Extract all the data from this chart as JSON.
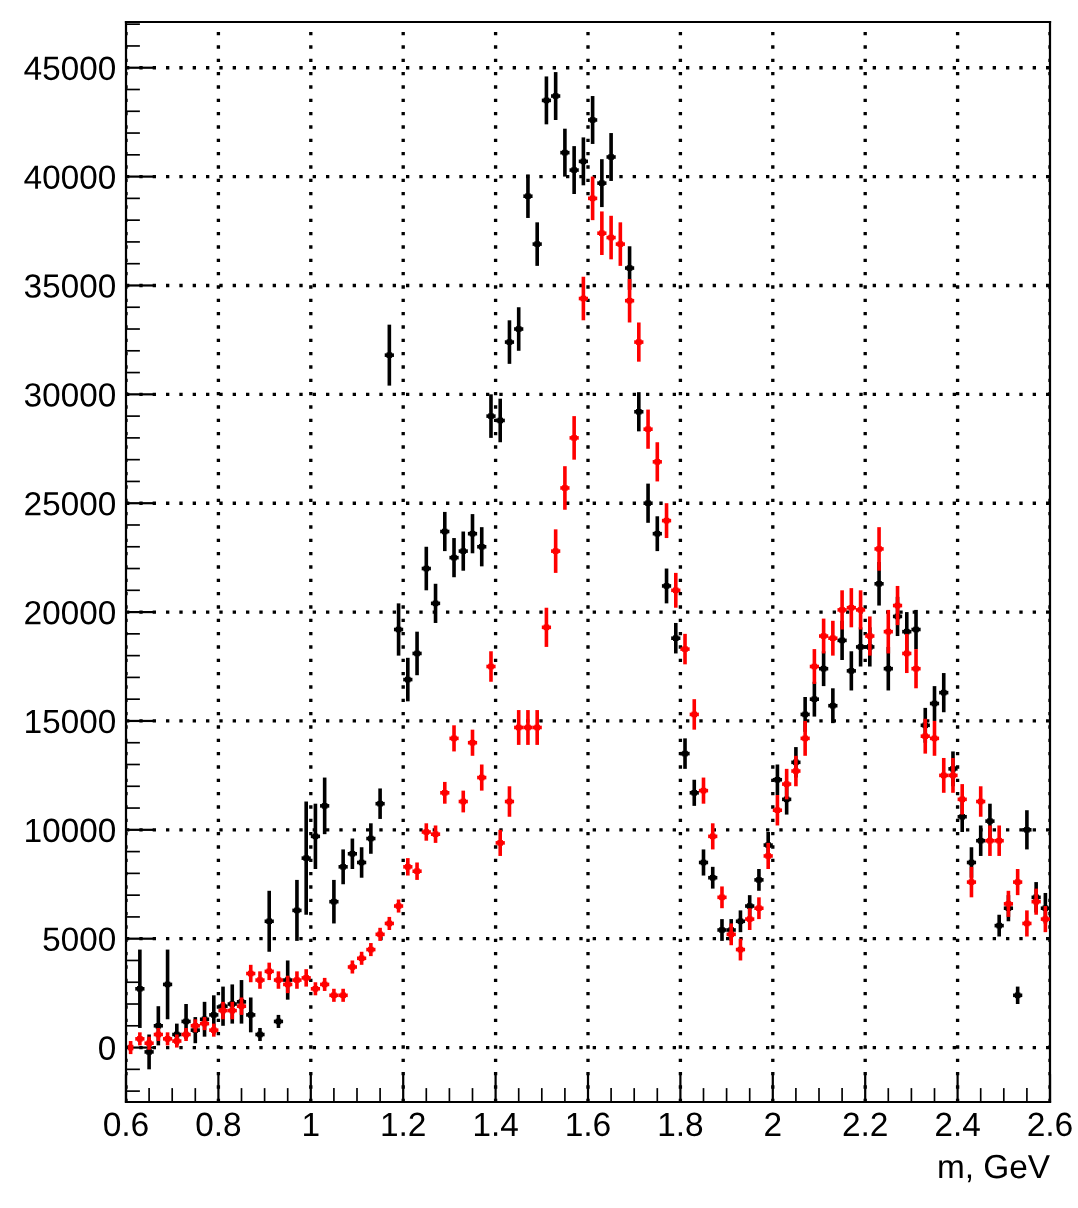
{
  "chart_data": {
    "type": "scatter",
    "xlabel": "m, GeV",
    "x": [
      0.61,
      0.63,
      0.65,
      0.67,
      0.69,
      0.71,
      0.73,
      0.75,
      0.77,
      0.79,
      0.81,
      0.83,
      0.85,
      0.87,
      0.89,
      0.91,
      0.93,
      0.95,
      0.97,
      0.99,
      1.01,
      1.03,
      1.05,
      1.07,
      1.09,
      1.11,
      1.13,
      1.15,
      1.17,
      1.19,
      1.21,
      1.23,
      1.25,
      1.27,
      1.29,
      1.31,
      1.33,
      1.35,
      1.37,
      1.39,
      1.41,
      1.43,
      1.45,
      1.47,
      1.49,
      1.51,
      1.53,
      1.55,
      1.57,
      1.59,
      1.61,
      1.63,
      1.65,
      1.67,
      1.69,
      1.71,
      1.73,
      1.75,
      1.77,
      1.79,
      1.81,
      1.83,
      1.85,
      1.87,
      1.89,
      1.91,
      1.93,
      1.95,
      1.97,
      1.99,
      2.01,
      2.03,
      2.05,
      2.07,
      2.09,
      2.11,
      2.13,
      2.15,
      2.17,
      2.19,
      2.21,
      2.23,
      2.25,
      2.27,
      2.29,
      2.31,
      2.33,
      2.35,
      2.37,
      2.39,
      2.41,
      2.43,
      2.45,
      2.47,
      2.49,
      2.51,
      2.53,
      2.55,
      2.57,
      2.59
    ],
    "series": [
      {
        "color": "#000000",
        "values": [
          null,
          2700,
          -200,
          1000,
          2900,
          600,
          1200,
          800,
          1300,
          1500,
          1900,
          2000,
          2100,
          1500,
          600,
          5800,
          1200,
          3100,
          6300,
          8700,
          9700,
          11100,
          6700,
          8300,
          8900,
          8500,
          9600,
          11200,
          31800,
          19200,
          16900,
          18100,
          22000,
          20400,
          23700,
          22500,
          22800,
          23600,
          23000,
          29000,
          28800,
          32400,
          33000,
          39100,
          36900,
          43500,
          43700,
          41100,
          40300,
          40700,
          42600,
          39700,
          40900,
          null,
          35800,
          29200,
          25000,
          23600,
          21200,
          18800,
          13500,
          11700,
          8500,
          7800,
          5400,
          5400,
          5800,
          6500,
          7700,
          9300,
          12300,
          11400,
          13100,
          15300,
          16000,
          17400,
          15700,
          18700,
          17300,
          18400,
          18400,
          21300,
          17400,
          19800,
          19100,
          19200,
          14800,
          15800,
          16300,
          12800,
          10600,
          8500,
          9500,
          10400,
          5600,
          6400,
          2400,
          10000,
          6900,
          6400
        ],
        "errors": [
          null,
          1800,
          800,
          900,
          1600,
          500,
          800,
          600,
          800,
          900,
          900,
          900,
          1000,
          800,
          300,
          1400,
          300,
          900,
          1400,
          2600,
          1500,
          1300,
          1000,
          800,
          700,
          700,
          700,
          700,
          1400,
          1200,
          1000,
          1000,
          1000,
          900,
          900,
          900,
          900,
          900,
          900,
          1000,
          1000,
          1000,
          1000,
          1000,
          1000,
          1100,
          1100,
          1100,
          1100,
          1100,
          1100,
          1100,
          1100,
          null,
          1000,
          900,
          900,
          800,
          800,
          700,
          700,
          600,
          600,
          500,
          500,
          500,
          500,
          500,
          500,
          600,
          700,
          700,
          700,
          800,
          800,
          800,
          800,
          900,
          900,
          900,
          900,
          1000,
          1000,
          900,
          900,
          900,
          800,
          800,
          900,
          800,
          700,
          700,
          700,
          800,
          500,
          600,
          400,
          900,
          700,
          700
        ],
        "xerrors": [
          null,
          0.01,
          0.01,
          0.01,
          0.01,
          0.01,
          0.01,
          0.01,
          0.01,
          0.01,
          0.01,
          0.01,
          0.01,
          0.01,
          0.01,
          0.01,
          0.01,
          0.01,
          0.01,
          0.01,
          0.01,
          0.01,
          0.01,
          0.01,
          0.01,
          0.01,
          0.01,
          0.01,
          0.01,
          0.01,
          0.01,
          0.01,
          0.01,
          0.01,
          0.01,
          0.01,
          0.01,
          0.01,
          0.01,
          0.01,
          0.01,
          0.01,
          0.01,
          0.01,
          0.01,
          0.01,
          0.01,
          0.01,
          0.01,
          0.01,
          0.01,
          0.01,
          0.01,
          null,
          0.01,
          0.01,
          0.01,
          0.01,
          0.01,
          0.01,
          0.01,
          0.01,
          0.01,
          0.01,
          0.01,
          0.01,
          0.01,
          0.01,
          0.01,
          0.01,
          0.01,
          0.01,
          0.01,
          0.01,
          0.01,
          0.01,
          0.01,
          0.01,
          0.01,
          0.01,
          0.01,
          0.01,
          0.01,
          0.01,
          0.01,
          0.01,
          0.01,
          0.01,
          0.01,
          0.01,
          0.01,
          0.01,
          0.01,
          0.01,
          0.01,
          0.01,
          0.01,
          0.01,
          0.01,
          0.01
        ]
      },
      {
        "color": "#ff0000",
        "values": [
          0,
          400,
          200,
          600,
          400,
          300,
          600,
          1000,
          1100,
          800,
          1700,
          1700,
          1900,
          3400,
          3100,
          3500,
          3100,
          2900,
          3100,
          3200,
          2700,
          2900,
          2400,
          2400,
          3700,
          4100,
          4500,
          5200,
          5700,
          6500,
          8300,
          8100,
          9900,
          9800,
          11700,
          14200,
          11300,
          14000,
          12400,
          17500,
          9400,
          11300,
          14700,
          14700,
          14700,
          19300,
          22800,
          25700,
          28000,
          34400,
          39000,
          37400,
          37200,
          36900,
          34300,
          32400,
          28400,
          26900,
          24200,
          21000,
          18300,
          15300,
          11800,
          9700,
          6900,
          5200,
          4500,
          5900,
          6400,
          8800,
          10900,
          12100,
          12700,
          14200,
          17500,
          18900,
          18800,
          20100,
          20200,
          20100,
          18900,
          22900,
          19100,
          20300,
          18100,
          17400,
          14300,
          14200,
          12500,
          12500,
          11400,
          7600,
          11300,
          9500,
          9500,
          6600,
          7600,
          5700,
          6700,
          5900
        ],
        "errors": [
          300,
          300,
          300,
          300,
          300,
          300,
          300,
          300,
          300,
          300,
          400,
          400,
          400,
          400,
          400,
          400,
          400,
          400,
          400,
          400,
          300,
          300,
          300,
          300,
          300,
          300,
          300,
          300,
          300,
          300,
          400,
          400,
          400,
          400,
          500,
          600,
          500,
          600,
          600,
          700,
          600,
          700,
          800,
          800,
          800,
          900,
          1000,
          1000,
          1000,
          1000,
          1000,
          1000,
          1000,
          1000,
          1000,
          900,
          900,
          900,
          800,
          800,
          700,
          700,
          600,
          600,
          500,
          500,
          500,
          500,
          500,
          600,
          700,
          700,
          700,
          800,
          800,
          800,
          800,
          900,
          900,
          900,
          900,
          1000,
          1000,
          900,
          900,
          900,
          800,
          800,
          800,
          800,
          700,
          700,
          700,
          700,
          700,
          600,
          600,
          600,
          600,
          600
        ],
        "xerrors": [
          null,
          0.01,
          0.01,
          0.01,
          0.01,
          0.01,
          0.01,
          0.01,
          0.01,
          0.01,
          0.01,
          0.01,
          0.01,
          0.01,
          0.01,
          0.01,
          0.01,
          0.01,
          0.01,
          0.01,
          0.01,
          0.01,
          0.01,
          0.01,
          0.01,
          0.01,
          0.01,
          0.01,
          0.01,
          0.01,
          0.01,
          0.01,
          0.01,
          0.01,
          0.01,
          0.01,
          0.01,
          0.01,
          0.01,
          0.01,
          0.01,
          0.01,
          0.01,
          0.01,
          0.01,
          0.01,
          0.01,
          0.01,
          0.01,
          0.01,
          0.01,
          0.01,
          0.01,
          0.01,
          0.01,
          0.01,
          0.01,
          0.01,
          0.01,
          0.01,
          0.01,
          0.01,
          0.01,
          0.01,
          0.01,
          0.01,
          0.01,
          0.01,
          0.01,
          0.01,
          0.01,
          0.01,
          0.01,
          0.01,
          0.01,
          0.01,
          0.01,
          0.01,
          0.01,
          0.01,
          0.01,
          0.01,
          0.01,
          0.01,
          0.01,
          0.01,
          0.01,
          0.01,
          0.01,
          0.01,
          0.01,
          0.01,
          0.01,
          0.01,
          0.01,
          0.01,
          0.01,
          0.01,
          0.01,
          0.01
        ]
      }
    ],
    "xlim": [
      0.6,
      2.6
    ],
    "ylim": [
      -2500,
      47100
    ],
    "xticks": [
      0.6,
      0.8,
      {
        "value": 1,
        "label": "1"
      },
      1.2,
      1.4,
      1.6,
      1.8,
      {
        "value": 2,
        "label": "2"
      },
      2.2,
      2.4,
      2.6
    ],
    "yticks": [
      0,
      5000,
      10000,
      15000,
      20000,
      25000,
      30000,
      35000,
      40000,
      45000
    ],
    "grid": true,
    "marker": "square"
  }
}
